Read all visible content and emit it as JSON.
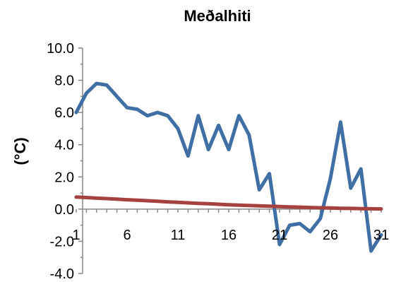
{
  "chart_data": {
    "type": "line",
    "title": "Meðalhiti",
    "xlabel": "",
    "ylabel": "(°C)",
    "x": [
      1,
      2,
      3,
      4,
      5,
      6,
      7,
      8,
      9,
      10,
      11,
      12,
      13,
      14,
      15,
      16,
      17,
      18,
      19,
      20,
      21,
      22,
      23,
      24,
      25,
      26,
      27,
      28,
      29,
      30,
      31
    ],
    "xticks": [
      "1",
      "6",
      "11",
      "16",
      "21",
      "26",
      "31"
    ],
    "yticks": [
      "10.0",
      "8.0",
      "6.0",
      "4.0",
      "2.0",
      "0.0",
      "-2.0",
      "-4.0"
    ],
    "ylim": [
      -4,
      10
    ],
    "xlim": [
      1,
      31
    ],
    "grid": false,
    "legend": false,
    "series": [
      {
        "color": "#3f6fa5",
        "values": [
          6.0,
          7.2,
          7.8,
          7.7,
          7.0,
          6.3,
          6.2,
          5.8,
          6.0,
          5.8,
          5.0,
          3.3,
          5.8,
          3.7,
          5.2,
          3.7,
          5.8,
          4.6,
          1.2,
          2.2,
          -2.2,
          -1.0,
          -0.9,
          -1.4,
          -0.6,
          1.9,
          5.4,
          1.3,
          2.5,
          -2.6,
          -1.6
        ]
      },
      {
        "color": "#a5423f",
        "values": [
          0.75,
          0.72,
          0.68,
          0.65,
          0.62,
          0.58,
          0.55,
          0.52,
          0.49,
          0.45,
          0.42,
          0.39,
          0.36,
          0.33,
          0.3,
          0.27,
          0.25,
          0.22,
          0.2,
          0.18,
          0.16,
          0.14,
          0.12,
          0.1,
          0.08,
          0.07,
          0.05,
          0.04,
          0.03,
          0.02,
          0.01
        ]
      }
    ]
  }
}
